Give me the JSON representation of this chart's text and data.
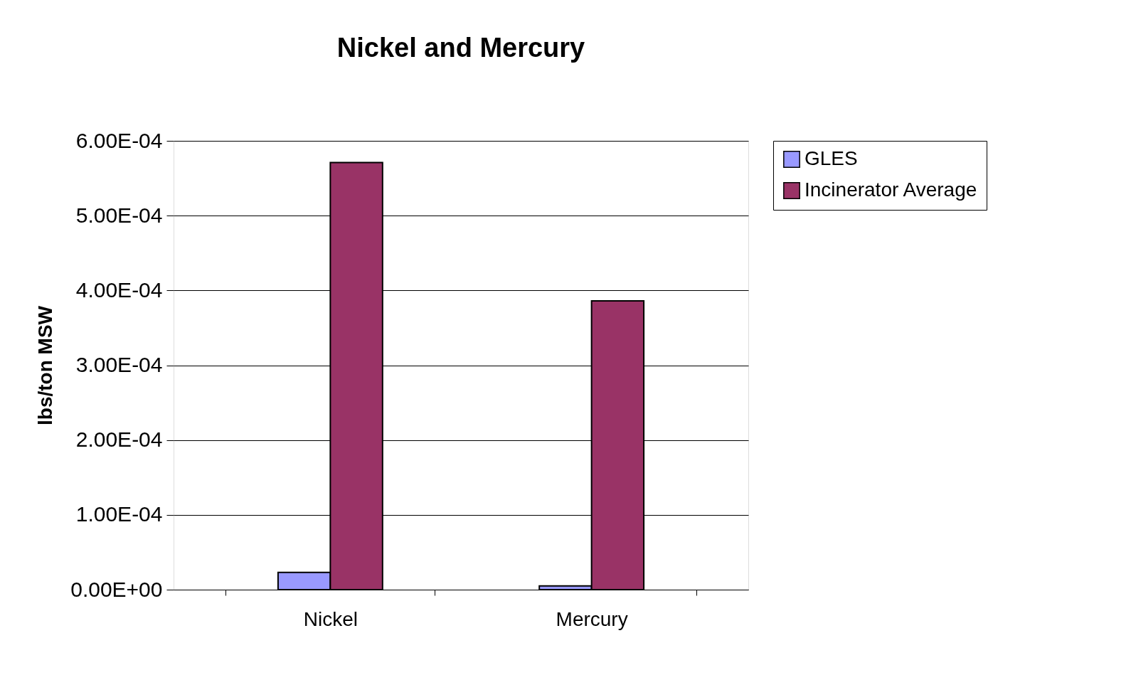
{
  "chart_data": {
    "type": "bar",
    "title": "Nickel and Mercury",
    "ylabel": "lbs/ton MSW",
    "categories": [
      "Nickel",
      "Mercury"
    ],
    "series": [
      {
        "name": "GLES",
        "color": "#9999ff",
        "values": [
          2.3e-05,
          5e-06
        ]
      },
      {
        "name": "Incinerator Average",
        "color": "#993366",
        "values": [
          0.000571,
          0.000386
        ]
      }
    ],
    "ylim": [
      0,
      0.0006
    ],
    "yticks": [
      {
        "value": 0,
        "label": "0.00E+00"
      },
      {
        "value": 0.0001,
        "label": "1.00E-04"
      },
      {
        "value": 0.0002,
        "label": "2.00E-04"
      },
      {
        "value": 0.0003,
        "label": "3.00E-04"
      },
      {
        "value": 0.0004,
        "label": "4.00E-04"
      },
      {
        "value": 0.0005,
        "label": "5.00E-04"
      },
      {
        "value": 0.0006,
        "label": "6.00E-04"
      }
    ],
    "grid": "y",
    "legend": "right"
  }
}
